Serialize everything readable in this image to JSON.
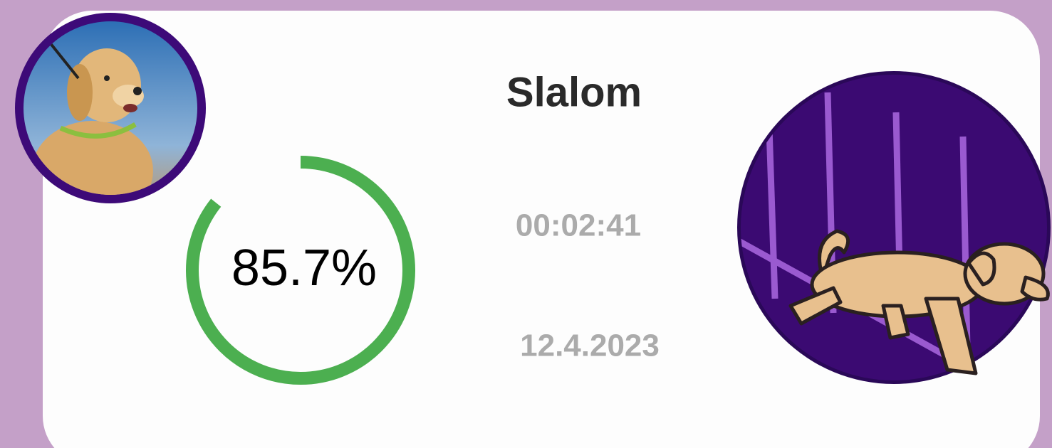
{
  "title": "Slalom",
  "time": "00:02:41",
  "date": "12.4.2023",
  "progress": {
    "value": 85.7,
    "label": "85.7%"
  }
}
